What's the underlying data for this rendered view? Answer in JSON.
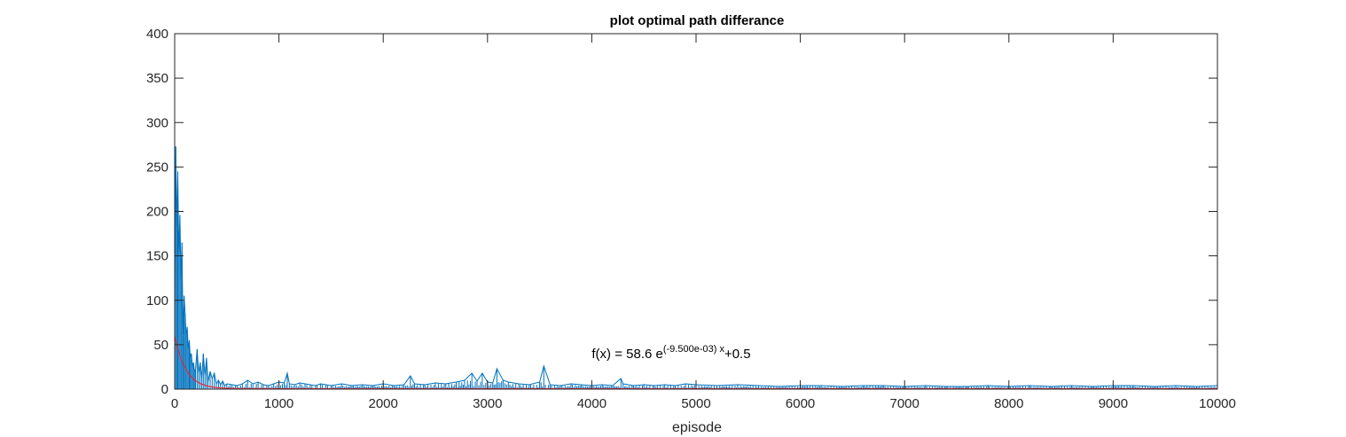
{
  "chart_data": {
    "type": "line",
    "title": "plot optimal path differance",
    "xlabel": "episode",
    "ylabel": "",
    "xlim": [
      0,
      10000
    ],
    "ylim": [
      0,
      400
    ],
    "xticks": [
      0,
      1000,
      2000,
      3000,
      4000,
      5000,
      6000,
      7000,
      8000,
      9000,
      10000
    ],
    "yticks": [
      0,
      50,
      100,
      150,
      200,
      250,
      300,
      350,
      400
    ],
    "grid": false,
    "box": true,
    "colors": {
      "data": "#0072bd",
      "fit": "#e8283c",
      "axis": "#262626"
    },
    "series": [
      {
        "kind": "raw",
        "x": [
          0,
          10,
          20,
          30,
          40,
          50,
          60,
          70,
          80,
          90,
          100,
          110,
          120,
          130,
          140,
          150,
          160,
          170,
          180,
          190,
          200,
          215,
          230,
          245,
          260,
          275,
          290,
          305,
          320,
          340,
          360,
          380,
          400,
          420,
          440,
          460,
          480,
          500,
          550,
          600,
          650,
          700,
          750,
          800,
          850,
          900,
          950,
          1000,
          1050,
          1080,
          1100,
          1150,
          1200,
          1250,
          1300,
          1350,
          1400,
          1450,
          1500,
          1600,
          1700,
          1800,
          1900,
          2000,
          2100,
          2200,
          2260,
          2300,
          2400,
          2500,
          2600,
          2700,
          2780,
          2850,
          2900,
          2950,
          3000,
          3050,
          3090,
          3150,
          3200,
          3300,
          3400,
          3500,
          3540,
          3600,
          3700,
          3800,
          3900,
          4000,
          4100,
          4200,
          4280,
          4300,
          4400,
          4500,
          4600,
          4700,
          4800,
          4900,
          5000,
          5200,
          5400,
          5600,
          5800,
          6000,
          6200,
          6400,
          6600,
          6800,
          7000,
          7200,
          7400,
          7600,
          7800,
          8000,
          8200,
          8400,
          8600,
          8800,
          9000,
          9200,
          9400,
          9600,
          9800,
          10000
        ],
        "y": [
          90,
          273,
          180,
          245,
          150,
          196,
          120,
          165,
          60,
          105,
          85,
          60,
          70,
          45,
          55,
          35,
          40,
          25,
          30,
          20,
          22,
          45,
          18,
          30,
          12,
          40,
          15,
          35,
          8,
          20,
          12,
          18,
          6,
          10,
          5,
          9,
          4,
          6,
          5,
          4,
          6,
          10,
          6,
          8,
          5,
          4,
          6,
          8,
          7,
          18,
          6,
          5,
          7,
          6,
          5,
          4,
          6,
          5,
          4,
          6,
          4,
          5,
          4,
          6,
          4,
          5,
          15,
          6,
          5,
          7,
          6,
          8,
          10,
          18,
          9,
          18,
          8,
          7,
          23,
          10,
          8,
          6,
          5,
          8,
          26,
          5,
          4,
          6,
          5,
          4,
          5,
          4,
          12,
          6,
          4,
          5,
          4,
          5,
          4,
          6,
          5,
          4,
          5,
          4,
          3,
          4,
          4,
          3,
          4,
          4,
          3,
          4,
          3,
          3,
          4,
          3,
          4,
          3,
          4,
          3,
          4,
          4,
          3,
          4,
          3,
          4
        ]
      },
      {
        "kind": "fit",
        "x": [
          0,
          50,
          100,
          150,
          200,
          250,
          300,
          350,
          400,
          500,
          600,
          800,
          1000,
          2000,
          4000,
          6000,
          8000,
          10000
        ],
        "y": [
          59.1,
          37.1,
          23.8,
          14.8,
          9.4,
          6.1,
          3.9,
          2.6,
          1.8,
          1.0,
          0.7,
          0.6,
          0.5,
          0.5,
          0.5,
          0.5,
          0.5,
          0.5
        ]
      }
    ],
    "annotation": {
      "prefix": "f(x) = 58.6 e",
      "superscript": "(-9.500e-03) x",
      "suffix": "+0.5",
      "x": 4000,
      "y": 35
    }
  }
}
